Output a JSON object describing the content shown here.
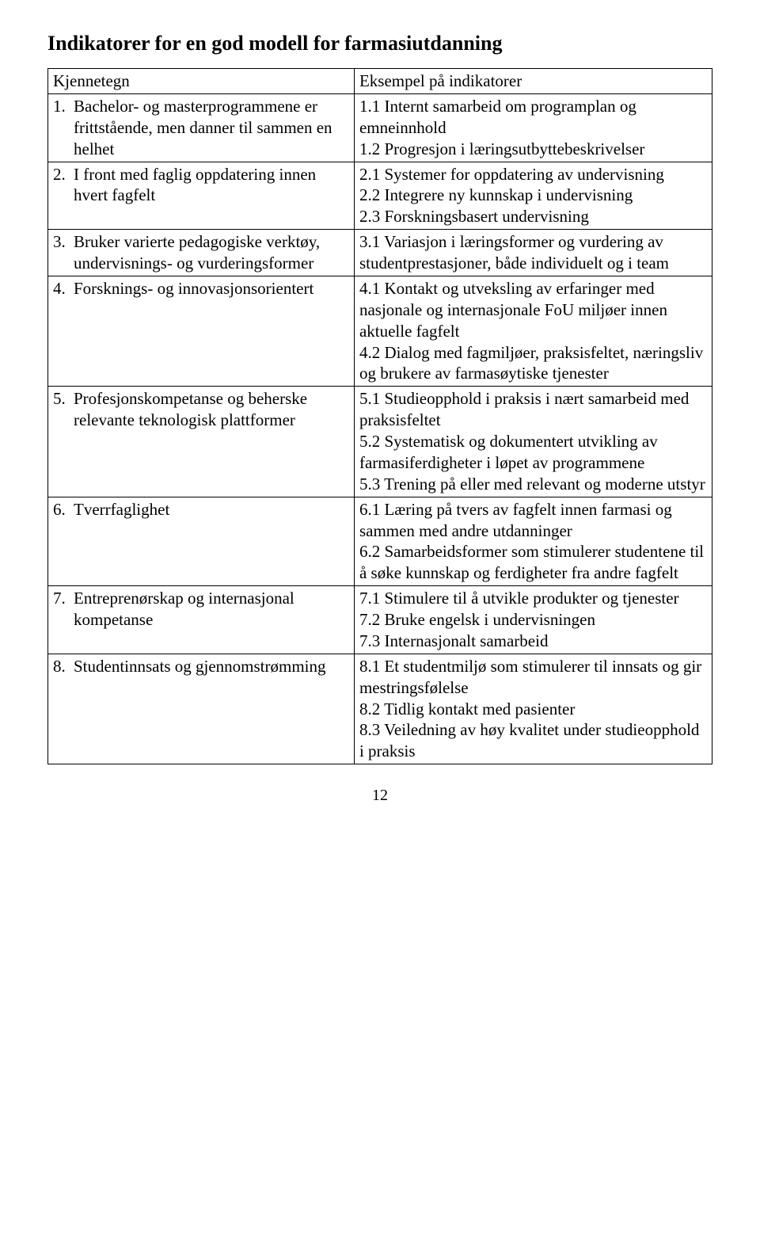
{
  "title": "Indikatorer for en god modell for farmasiutdanning",
  "headers": {
    "left": "Kjennetegn",
    "right": "Eksempel på indikatorer"
  },
  "rows": [
    {
      "left_num": "1.",
      "left_text": "Bachelor- og masterprogrammene er frittstående, men danner til sammen en helhet",
      "right": [
        "1.1 Internt samarbeid om programplan og emneinnhold",
        "1.2 Progresjon i læringsutbyttebeskrivelser"
      ]
    },
    {
      "left_num": "2.",
      "left_text": "I front med faglig oppdatering innen hvert fagfelt",
      "right": [
        "2.1 Systemer for oppdatering av undervisning",
        "2.2 Integrere ny kunnskap i undervisning",
        "2.3 Forskningsbasert undervisning"
      ]
    },
    {
      "left_num": "3.",
      "left_text": "Bruker varierte pedagogiske verktøy, undervisnings- og vurderingsformer",
      "right": [
        "3.1 Variasjon i læringsformer og vurdering av studentprestasjoner, både individuelt og i team"
      ]
    },
    {
      "left_num": "4.",
      "left_text": "Forsknings- og innovasjonsorientert",
      "right": [
        "4.1 Kontakt og utveksling av erfaringer med nasjonale og internasjonale FoU miljøer innen aktuelle fagfelt",
        "4.2 Dialog med fagmiljøer, praksisfeltet, næringsliv og brukere av farmasøytiske tjenester"
      ]
    },
    {
      "left_num": "5.",
      "left_text": "Profesjonskompetanse og beherske relevante teknologisk plattformer",
      "right": [
        "5.1 Studieopphold i praksis i nært samarbeid med praksisfeltet",
        "5.2 Systematisk og dokumentert utvikling av farmasiferdigheter i løpet av programmene",
        "5.3 Trening på eller med relevant og moderne utstyr"
      ]
    },
    {
      "left_num": "6.",
      "left_text": "Tverrfaglighet",
      "right": [
        "6.1 Læring på tvers av fagfelt innen farmasi og sammen med andre utdanninger",
        "6.2 Samarbeidsformer som stimulerer studentene til å søke kunnskap og ferdigheter fra andre fagfelt"
      ]
    },
    {
      "left_num": "7.",
      "left_text": "Entreprenørskap og internasjonal kompetanse",
      "right": [
        "7.1 Stimulere til å utvikle produkter og tjenester",
        "7.2 Bruke engelsk i undervisningen",
        "7.3 Internasjonalt samarbeid"
      ]
    },
    {
      "left_num": "8.",
      "left_text": "Studentinnsats og gjennomstrømming",
      "right": [
        "8.1 Et studentmiljø som stimulerer til innsats og gir mestringsfølelse",
        "8.2 Tidlig kontakt med pasienter",
        "8.3 Veiledning av høy kvalitet under studieopphold i praksis"
      ]
    }
  ],
  "page_number": "12"
}
